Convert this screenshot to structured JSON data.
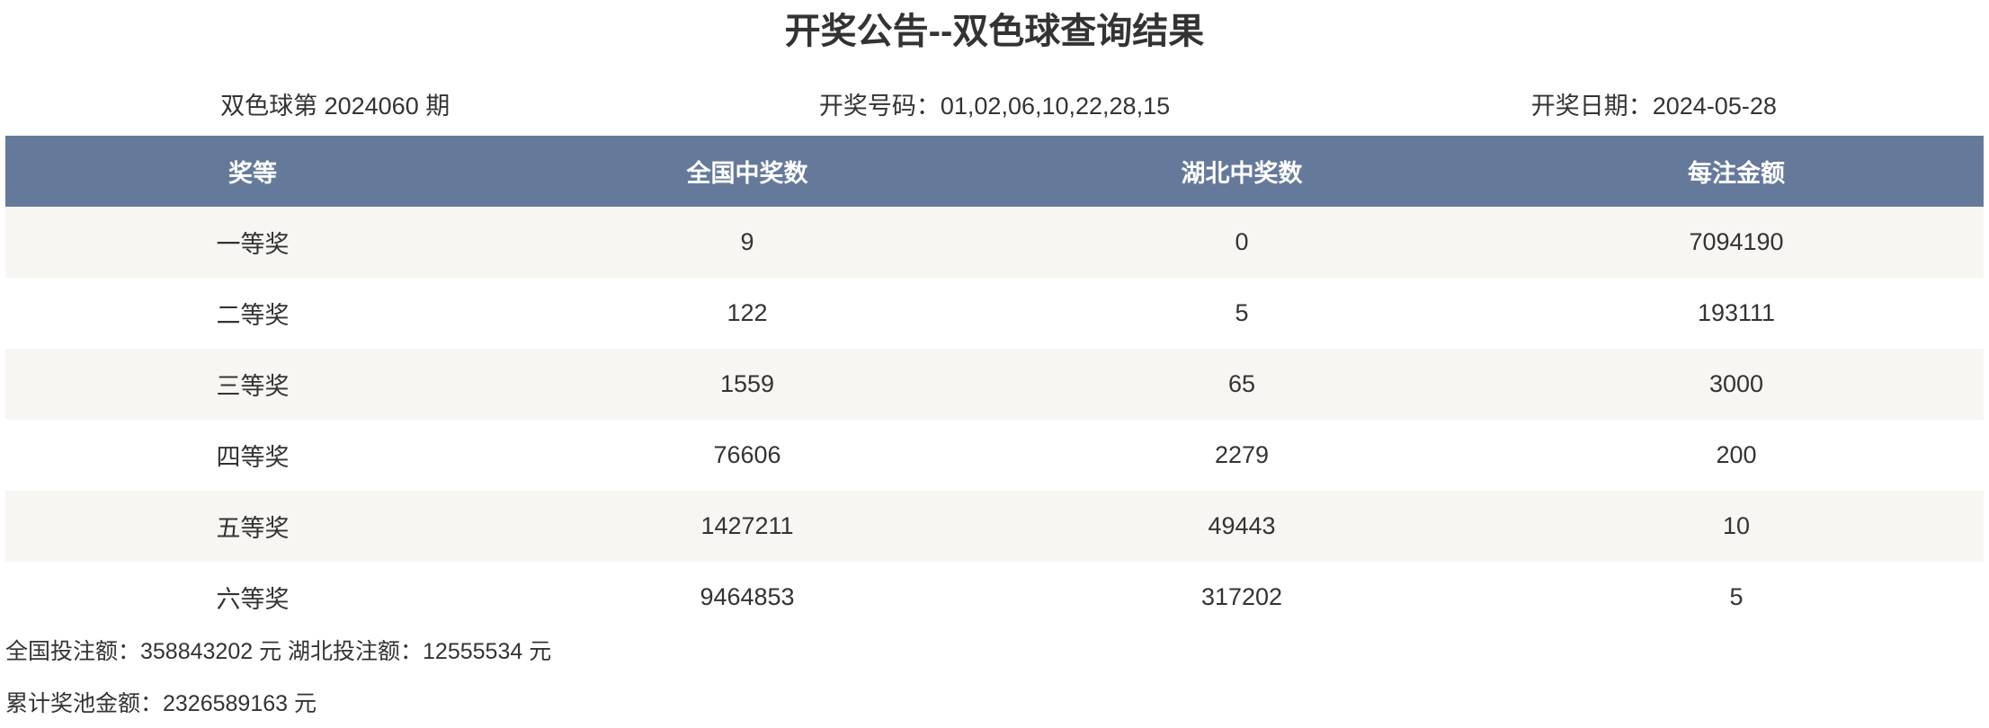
{
  "title": "开奖公告--双色球查询结果",
  "info": {
    "issue": "双色球第 2024060 期",
    "numbers": "开奖号码：01,02,06,10,22,28,15",
    "date": "开奖日期：2024-05-28"
  },
  "table": {
    "headers": [
      "奖等",
      "全国中奖数",
      "湖北中奖数",
      "每注金额"
    ],
    "rows": [
      [
        "一等奖",
        "9",
        "0",
        "7094190"
      ],
      [
        "二等奖",
        "122",
        "5",
        "193111"
      ],
      [
        "三等奖",
        "1559",
        "65",
        "3000"
      ],
      [
        "四等奖",
        "76606",
        "2279",
        "200"
      ],
      [
        "五等奖",
        "1427211",
        "49443",
        "10"
      ],
      [
        "六等奖",
        "9464853",
        "317202",
        "5"
      ]
    ]
  },
  "footer": {
    "sales": "全国投注额：358843202 元 湖北投注额：12555534 元",
    "pool": "累计奖池金额：2326589163 元"
  },
  "colors": {
    "header_bg": "#657a9b",
    "stripe": "#f7f6f2"
  }
}
